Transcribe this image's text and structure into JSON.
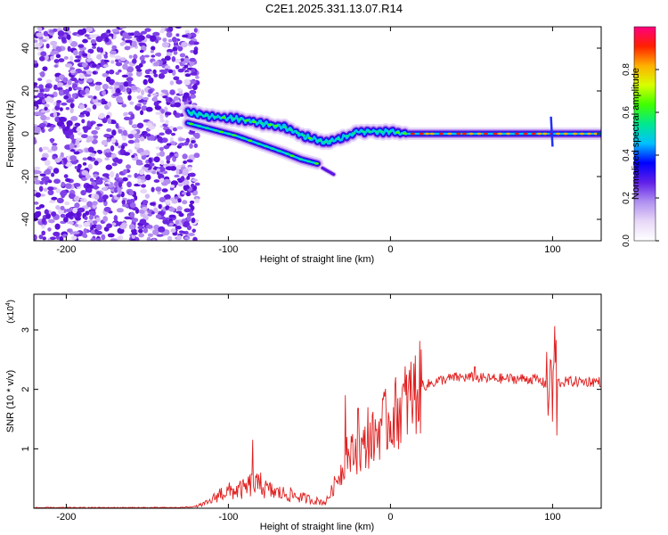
{
  "chart_data": [
    {
      "type": "heatmap",
      "title": "C2E1.2025.331.13.07.R14",
      "xlabel": "Height of straight line (km)",
      "ylabel": "Frequency (Hz)",
      "xlim": [
        -220,
        130
      ],
      "ylim": [
        -50,
        50
      ],
      "xticks": [
        -200,
        -100,
        0,
        100
      ],
      "xtick_labels": [
        "-200",
        "-100",
        "0",
        "100"
      ],
      "yticks": [
        -40,
        -20,
        0,
        20,
        40
      ],
      "ytick_labels": [
        "-40",
        "-20",
        "0",
        "20",
        "40"
      ],
      "noise_region_x": [
        -220,
        -125
      ],
      "tracks": [
        {
          "name": "main",
          "points": [
            [
              -125,
              10
            ],
            [
              -110,
              8
            ],
            [
              -95,
              7
            ],
            [
              -80,
              5
            ],
            [
              -65,
              3
            ],
            [
              -50,
              -2
            ],
            [
              -40,
              -4
            ],
            [
              -30,
              -2
            ],
            [
              -20,
              1
            ],
            [
              -10,
              1
            ],
            [
              0,
              1
            ],
            [
              10,
              0
            ],
            [
              20,
              0
            ],
            [
              60,
              0
            ],
            [
              95,
              0
            ],
            [
              100,
              0
            ],
            [
              130,
              0
            ]
          ]
        },
        {
          "name": "lower",
          "points": [
            [
              -125,
              5
            ],
            [
              -110,
              2
            ],
            [
              -95,
              -1
            ],
            [
              -80,
              -5
            ],
            [
              -65,
              -9
            ],
            [
              -55,
              -12
            ],
            [
              -45,
              -14
            ]
          ]
        },
        {
          "name": "faint-tail",
          "points": [
            [
              -42,
              -16
            ],
            [
              -35,
              -19
            ]
          ]
        }
      ],
      "colorbar": {
        "label": "Normalized spectral amplitude",
        "ticks": [
          0.0,
          0.2,
          0.4,
          0.6,
          0.8
        ],
        "tick_labels": [
          "0.0",
          "0.2",
          "0.4",
          "0.6",
          "0.8"
        ],
        "range": [
          0,
          1
        ],
        "colors": [
          "#ffffff",
          "#e8d8f8",
          "#b090f0",
          "#6020e8",
          "#0000ff",
          "#00c0ff",
          "#00e890",
          "#40ff00",
          "#d8ff00",
          "#ffb000",
          "#ff2000",
          "#ff0080"
        ]
      }
    },
    {
      "type": "line",
      "xlabel": "Height of straight line (km)",
      "ylabel": "SNR (10 * v/v)",
      "scale_label": "(x10",
      "scale_exp": "4",
      "scale_close": ")",
      "xlim": [
        -220,
        130
      ],
      "ylim": [
        0,
        3.6
      ],
      "xticks": [
        -200,
        -100,
        0,
        100
      ],
      "xtick_labels": [
        "-200",
        "-100",
        "0",
        "100"
      ],
      "yticks": [
        1,
        2,
        3
      ],
      "ytick_labels": [
        "1",
        "2",
        "3"
      ],
      "color": "#e02020",
      "series": [
        {
          "name": "SNR",
          "envelope": [
            [
              -220,
              0.01
            ],
            [
              -130,
              0.01
            ],
            [
              -120,
              0.03
            ],
            [
              -112,
              0.1
            ],
            [
              -105,
              0.25
            ],
            [
              -100,
              0.28
            ],
            [
              -95,
              0.3
            ],
            [
              -90,
              0.32
            ],
            [
              -85,
              0.42
            ],
            [
              -80,
              0.35
            ],
            [
              -75,
              0.3
            ],
            [
              -70,
              0.26
            ],
            [
              -65,
              0.24
            ],
            [
              -60,
              0.22
            ],
            [
              -55,
              0.18
            ],
            [
              -50,
              0.15
            ],
            [
              -45,
              0.12
            ],
            [
              -40,
              0.1
            ],
            [
              -36,
              0.3
            ],
            [
              -32,
              0.55
            ],
            [
              -28,
              0.7
            ],
            [
              -25,
              0.9
            ],
            [
              -20,
              0.95
            ],
            [
              -15,
              1.05
            ],
            [
              -10,
              1.2
            ],
            [
              -5,
              1.4
            ],
            [
              0,
              1.5
            ],
            [
              5,
              1.65
            ],
            [
              10,
              1.8
            ],
            [
              15,
              1.95
            ],
            [
              20,
              2.05
            ],
            [
              30,
              2.15
            ],
            [
              40,
              2.2
            ],
            [
              50,
              2.2
            ],
            [
              60,
              2.18
            ],
            [
              70,
              2.18
            ],
            [
              80,
              2.18
            ],
            [
              90,
              2.17
            ],
            [
              95,
              2.1
            ],
            [
              100,
              2.1
            ],
            [
              105,
              2.12
            ],
            [
              110,
              2.13
            ],
            [
              120,
              2.13
            ],
            [
              130,
              2.13
            ]
          ],
          "spikes": [
            [
              -85,
              1.15
            ],
            [
              -80,
              0.6
            ],
            [
              -28,
              1.9
            ],
            [
              -27,
              1.2
            ],
            [
              -20,
              1.68
            ],
            [
              -14,
              1.7
            ],
            [
              -6,
              1.5
            ],
            [
              52,
              2.38
            ],
            [
              98,
              2.95
            ],
            [
              99,
              3.6
            ],
            [
              100,
              0.06
            ],
            [
              101,
              3.45
            ],
            [
              102,
              3.35
            ]
          ]
        }
      ]
    }
  ]
}
